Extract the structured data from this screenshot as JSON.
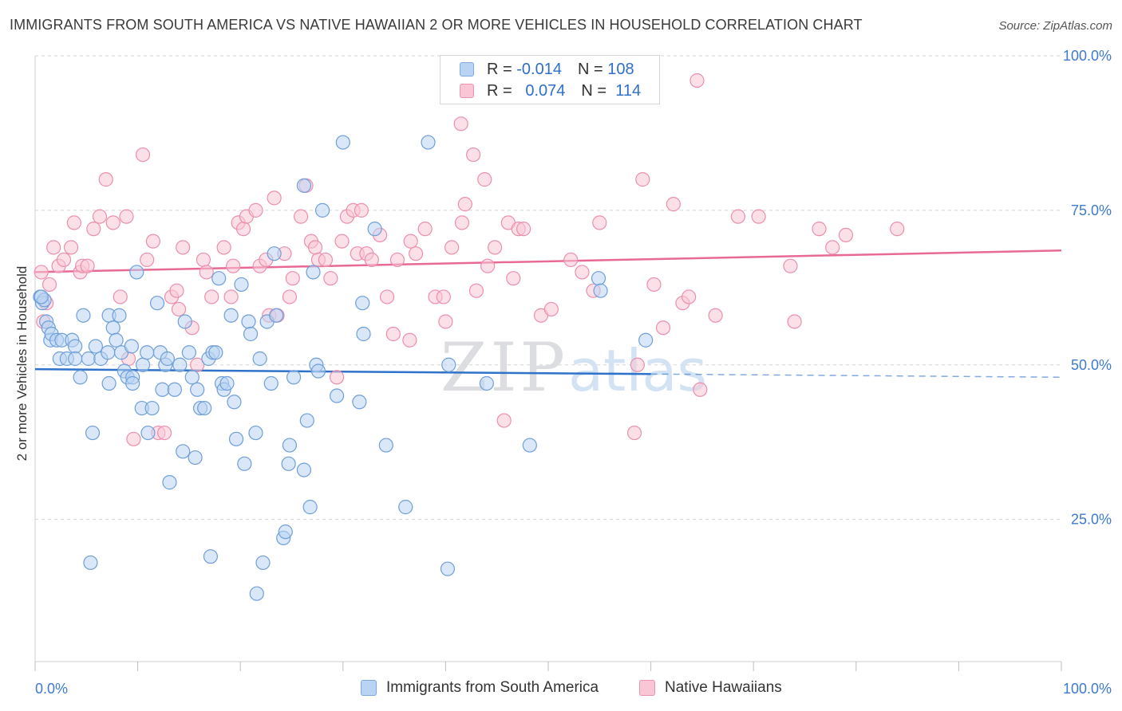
{
  "title": "IMMIGRANTS FROM SOUTH AMERICA VS NATIVE HAWAIIAN 2 OR MORE VEHICLES IN HOUSEHOLD CORRELATION CHART",
  "source": "Source: ZipAtlas.com",
  "watermark": {
    "zip": "ZIP",
    "atlas": "atlas"
  },
  "legend": {
    "r_label": "R =",
    "n_label": "N =",
    "blue": {
      "r": "-0.014",
      "n": "108"
    },
    "pink": {
      "r": "0.074",
      "n": "114"
    }
  },
  "colors": {
    "blue_fill": "#b9d3f3",
    "blue_stroke": "#6f9fd9",
    "blue_line": "#2f72c9",
    "pink_fill": "#f9c6d6",
    "pink_stroke": "#eb8fae",
    "pink_line": "#e86a94",
    "tick_label": "#3d7ad0",
    "grid": "#d5d5d5"
  },
  "chart_data": {
    "type": "scatter",
    "title": "IMMIGRANTS FROM SOUTH AMERICA VS NATIVE HAWAIIAN 2 OR MORE VEHICLES IN HOUSEHOLD CORRELATION CHART",
    "xlabel": "",
    "ylabel": "2 or more Vehicles in Household",
    "x_tick_labels": [
      "0.0%",
      "100.0%"
    ],
    "y_tick_labels": [
      "25.0%",
      "50.0%",
      "75.0%",
      "100.0%"
    ],
    "xlim": [
      0,
      100
    ],
    "ylim": [
      2,
      100
    ],
    "grid": true,
    "legend_position": "top-center",
    "series": [
      {
        "name": "Immigrants from South America",
        "r": -0.014,
        "n": 108,
        "trend": {
          "x": [
            0,
            100
          ],
          "y": [
            49.3,
            48.0
          ],
          "solid_until_x": 60
        },
        "points": [
          [
            0.5,
            61
          ],
          [
            0.7,
            60
          ],
          [
            0.9,
            60.5
          ],
          [
            1.1,
            57
          ],
          [
            1.3,
            56
          ],
          [
            1.5,
            54
          ],
          [
            1.6,
            55
          ],
          [
            2.1,
            54
          ],
          [
            2.4,
            51
          ],
          [
            2.6,
            54
          ],
          [
            3.1,
            51
          ],
          [
            3.6,
            54
          ],
          [
            3.9,
            53
          ],
          [
            3.9,
            51
          ],
          [
            4.4,
            48
          ],
          [
            4.7,
            58
          ],
          [
            5.2,
            51
          ],
          [
            5.6,
            39
          ],
          [
            5.4,
            18
          ],
          [
            5.9,
            53
          ],
          [
            6.4,
            51
          ],
          [
            7.1,
            52
          ],
          [
            7.2,
            58
          ],
          [
            7.2,
            47
          ],
          [
            7.6,
            56
          ],
          [
            7.9,
            54
          ],
          [
            8.2,
            58
          ],
          [
            8.4,
            52
          ],
          [
            8.7,
            49
          ],
          [
            9.0,
            48
          ],
          [
            9.4,
            53
          ],
          [
            9.5,
            48
          ],
          [
            9.5,
            47
          ],
          [
            9.9,
            65
          ],
          [
            10.4,
            43
          ],
          [
            10.5,
            50
          ],
          [
            10.9,
            52
          ],
          [
            11.0,
            39
          ],
          [
            11.4,
            43
          ],
          [
            11.9,
            60
          ],
          [
            12.2,
            52
          ],
          [
            12.4,
            46
          ],
          [
            12.7,
            50
          ],
          [
            12.9,
            51
          ],
          [
            13.1,
            31
          ],
          [
            13.6,
            46
          ],
          [
            14.1,
            50
          ],
          [
            14.4,
            36
          ],
          [
            14.6,
            57
          ],
          [
            15.0,
            52
          ],
          [
            15.3,
            48
          ],
          [
            15.6,
            35
          ],
          [
            15.8,
            46
          ],
          [
            16.1,
            43
          ],
          [
            16.5,
            43
          ],
          [
            16.9,
            51
          ],
          [
            17.1,
            19
          ],
          [
            17.3,
            52
          ],
          [
            17.6,
            52
          ],
          [
            17.9,
            64
          ],
          [
            18.2,
            47
          ],
          [
            18.4,
            46
          ],
          [
            18.7,
            47
          ],
          [
            19.1,
            58
          ],
          [
            19.4,
            44
          ],
          [
            19.6,
            38
          ],
          [
            20.1,
            63
          ],
          [
            20.4,
            34
          ],
          [
            20.8,
            57
          ],
          [
            21.0,
            55
          ],
          [
            21.5,
            39
          ],
          [
            21.6,
            13
          ],
          [
            21.9,
            51
          ],
          [
            22.2,
            18
          ],
          [
            22.6,
            57
          ],
          [
            23.0,
            47
          ],
          [
            23.3,
            68
          ],
          [
            23.5,
            58
          ],
          [
            24.2,
            22
          ],
          [
            24.4,
            23
          ],
          [
            24.7,
            34
          ],
          [
            24.8,
            37
          ],
          [
            25.2,
            48
          ],
          [
            26.2,
            33
          ],
          [
            26.2,
            79
          ],
          [
            26.5,
            41
          ],
          [
            26.8,
            27
          ],
          [
            27.1,
            65
          ],
          [
            27.4,
            50
          ],
          [
            27.6,
            49
          ],
          [
            28.0,
            75
          ],
          [
            29.4,
            45
          ],
          [
            30.0,
            86
          ],
          [
            31.6,
            44
          ],
          [
            31.9,
            60
          ],
          [
            32.0,
            55
          ],
          [
            33.1,
            72
          ],
          [
            34.2,
            37
          ],
          [
            36.1,
            27
          ],
          [
            38.3,
            86
          ],
          [
            40.2,
            17
          ],
          [
            40.3,
            50
          ],
          [
            44.0,
            47
          ],
          [
            48.2,
            37
          ],
          [
            54.9,
            64
          ],
          [
            55.1,
            62
          ],
          [
            59.5,
            54
          ],
          [
            0.6,
            61
          ]
        ]
      },
      {
        "name": "Native Hawaiians",
        "r": 0.074,
        "n": 114,
        "trend": {
          "x": [
            0,
            100
          ],
          "y": [
            65.0,
            68.5
          ]
        },
        "points": [
          [
            0.6,
            65
          ],
          [
            0.8,
            57
          ],
          [
            1.1,
            60
          ],
          [
            1.4,
            63
          ],
          [
            1.8,
            69
          ],
          [
            2.3,
            66
          ],
          [
            2.8,
            67
          ],
          [
            3.5,
            69
          ],
          [
            3.8,
            73
          ],
          [
            4.4,
            65
          ],
          [
            4.6,
            66
          ],
          [
            5.1,
            66
          ],
          [
            5.7,
            72
          ],
          [
            6.3,
            74
          ],
          [
            6.9,
            80
          ],
          [
            7.6,
            73
          ],
          [
            8.3,
            61
          ],
          [
            8.9,
            74
          ],
          [
            9.1,
            51
          ],
          [
            9.6,
            38
          ],
          [
            10.5,
            84
          ],
          [
            10.9,
            67
          ],
          [
            11.5,
            70
          ],
          [
            12.0,
            39
          ],
          [
            12.6,
            39
          ],
          [
            13.3,
            61
          ],
          [
            13.8,
            62
          ],
          [
            14.0,
            59
          ],
          [
            14.4,
            69
          ],
          [
            15.3,
            56
          ],
          [
            15.8,
            50
          ],
          [
            16.4,
            67
          ],
          [
            16.7,
            65
          ],
          [
            17.2,
            61
          ],
          [
            18.4,
            69
          ],
          [
            19.1,
            61
          ],
          [
            19.3,
            66
          ],
          [
            19.8,
            73
          ],
          [
            20.3,
            72
          ],
          [
            20.6,
            74
          ],
          [
            21.5,
            75
          ],
          [
            21.9,
            66
          ],
          [
            22.5,
            67
          ],
          [
            22.8,
            58
          ],
          [
            23.3,
            77
          ],
          [
            23.6,
            58
          ],
          [
            24.3,
            68
          ],
          [
            24.8,
            61
          ],
          [
            25.1,
            64
          ],
          [
            25.9,
            74
          ],
          [
            26.4,
            79
          ],
          [
            26.9,
            70
          ],
          [
            27.3,
            69
          ],
          [
            27.6,
            67
          ],
          [
            28.3,
            67
          ],
          [
            28.8,
            64
          ],
          [
            29.4,
            48
          ],
          [
            29.9,
            70
          ],
          [
            30.4,
            74
          ],
          [
            31.0,
            75
          ],
          [
            31.4,
            68
          ],
          [
            31.8,
            75
          ],
          [
            32.3,
            68
          ],
          [
            32.8,
            67
          ],
          [
            33.6,
            71
          ],
          [
            34.3,
            61
          ],
          [
            34.9,
            55
          ],
          [
            35.3,
            67
          ],
          [
            36.6,
            70
          ],
          [
            37.1,
            68
          ],
          [
            38.0,
            72
          ],
          [
            39.0,
            61
          ],
          [
            39.8,
            61
          ],
          [
            40.0,
            57
          ],
          [
            40.6,
            69
          ],
          [
            41.5,
            89
          ],
          [
            41.6,
            73
          ],
          [
            41.9,
            76
          ],
          [
            42.7,
            84
          ],
          [
            43.0,
            62
          ],
          [
            43.8,
            80
          ],
          [
            44.1,
            66
          ],
          [
            44.8,
            69
          ],
          [
            45.7,
            41
          ],
          [
            46.1,
            73
          ],
          [
            46.6,
            64
          ],
          [
            47.1,
            72
          ],
          [
            47.6,
            72
          ],
          [
            49.3,
            58
          ],
          [
            50.3,
            59
          ],
          [
            52.2,
            67
          ],
          [
            53.3,
            65
          ],
          [
            54.4,
            62
          ],
          [
            55.0,
            73
          ],
          [
            58.4,
            39
          ],
          [
            59.2,
            80
          ],
          [
            60.3,
            63
          ],
          [
            61.2,
            56
          ],
          [
            62.2,
            76
          ],
          [
            63.1,
            60
          ],
          [
            63.7,
            61
          ],
          [
            64.8,
            46
          ],
          [
            66.3,
            58
          ],
          [
            68.5,
            74
          ],
          [
            70.5,
            74
          ],
          [
            73.6,
            66
          ],
          [
            74.0,
            57
          ],
          [
            76.4,
            72
          ],
          [
            77.7,
            69
          ],
          [
            79.0,
            71
          ],
          [
            84.0,
            72
          ],
          [
            64.5,
            96
          ],
          [
            58.7,
            50
          ],
          [
            36.5,
            54
          ]
        ]
      }
    ]
  }
}
